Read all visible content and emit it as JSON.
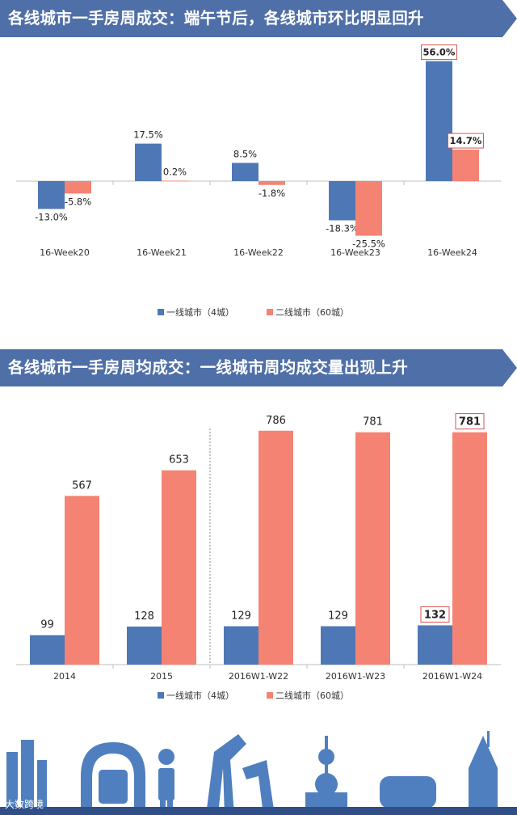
{
  "colors": {
    "banner": "#4f6fa8",
    "series1": "#4e78b5",
    "series2": "#f58373",
    "highlight_border": "#d9534f",
    "skyline": "#4f7fbf"
  },
  "chart1": {
    "title": "各线城市一手房周成交：端午节后，各线城市环比明显回升"
  },
  "chart2": {
    "title": "各线城市一手房周均成交：一线城市周均成交量出现上升"
  },
  "watermark": "大数跨境",
  "chart_data": [
    {
      "type": "bar",
      "title": "各线城市一手房周成交：端午节后，各线城市环比明显回升",
      "categories": [
        "16-Week20",
        "16-Week21",
        "16-Week22",
        "16-Week23",
        "16-Week24"
      ],
      "series": [
        {
          "name": "一线城市（4城）",
          "values": [
            -13.0,
            17.5,
            8.5,
            -18.3,
            56.0
          ],
          "labels": [
            "-13.0%",
            "17.5%",
            "8.5%",
            "-18.3%",
            "56.0%"
          ]
        },
        {
          "name": "二线城市（60城）",
          "values": [
            -5.8,
            0.2,
            -1.8,
            -25.5,
            14.7
          ],
          "labels": [
            "-5.8%",
            "0.2%",
            "-1.8%",
            "-25.5%",
            "14.7%"
          ]
        }
      ],
      "unit": "%",
      "ylim": [
        -30,
        60
      ],
      "grid": false,
      "legend_position": "bottom"
    },
    {
      "type": "bar",
      "title": "各线城市一手房周均成交：一线城市周均成交量出现上升",
      "categories": [
        "2014",
        "2015",
        "2016W1-W22",
        "2016W1-W23",
        "2016W1-W24"
      ],
      "series": [
        {
          "name": "一线城市（4城）",
          "values": [
            99,
            128,
            129,
            129,
            132
          ],
          "labels": [
            "99",
            "128",
            "129",
            "129",
            "132"
          ]
        },
        {
          "name": "二线城市（60城）",
          "values": [
            567,
            653,
            786,
            781,
            781
          ],
          "labels": [
            "567",
            "653",
            "786",
            "781",
            "781"
          ]
        }
      ],
      "ylim": [
        0,
        800
      ],
      "grid": false,
      "legend_position": "bottom"
    }
  ]
}
